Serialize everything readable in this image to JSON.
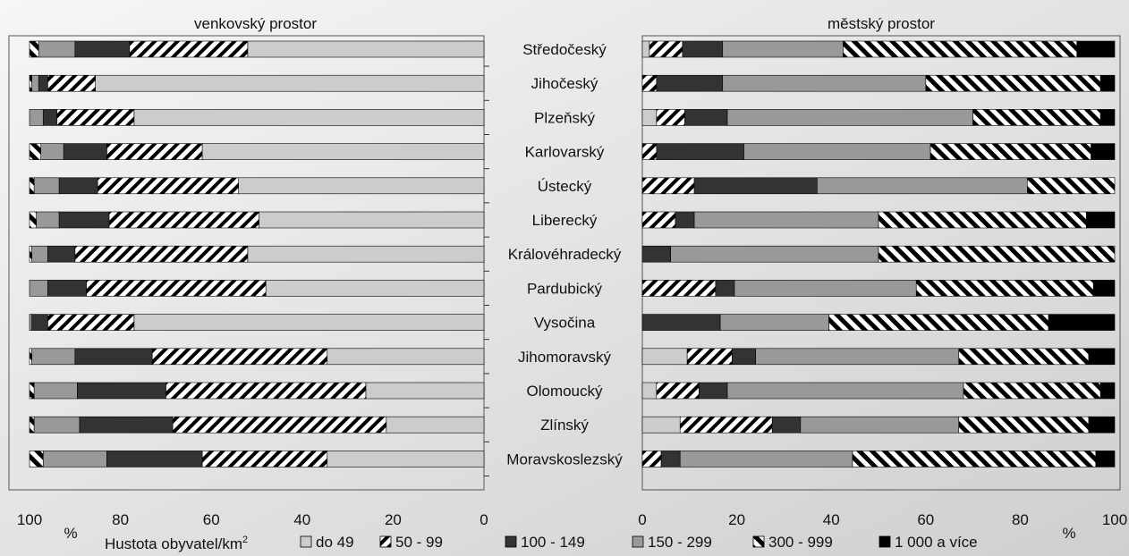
{
  "chart_data": [
    {
      "type": "bar",
      "subtype": "stacked-horizontal-100",
      "panel": "left",
      "title": "venkovský prostor",
      "x_axis": {
        "reversed": true,
        "ticks": [
          "100",
          "80",
          "60",
          "40",
          "20",
          "0"
        ],
        "unit_label": "%",
        "xlim": [
          0,
          100
        ]
      },
      "categories": [
        "Středočeský",
        "Jihočeský",
        "Plzeňský",
        "Karlovarský",
        "Ústecký",
        "Liberecký",
        "Královéhradecký",
        "Pardubický",
        "Vysočina",
        "Jihomoravský",
        "Olomoucký",
        "Zlínský",
        "Moravskoslezský"
      ],
      "series": [
        {
          "name": "do 49",
          "values": [
            52,
            85.5,
            77,
            62,
            54,
            49.5,
            52,
            48,
            77,
            34.5,
            26,
            21.5,
            34.5
          ]
        },
        {
          "name": "50 - 99",
          "values": [
            26,
            10.5,
            17,
            21,
            31,
            33,
            38,
            39.5,
            19,
            38.5,
            44,
            47,
            27.5
          ]
        },
        {
          "name": "100 - 149",
          "values": [
            12,
            2,
            3,
            9.5,
            8.5,
            11,
            6,
            8.5,
            3.5,
            17,
            19.5,
            20.5,
            21
          ]
        },
        {
          "name": "150 - 299",
          "values": [
            8,
            1.5,
            3,
            5,
            5.5,
            5,
            3.5,
            4,
            0.5,
            9.5,
            9.5,
            10,
            14
          ]
        },
        {
          "name": "300 - 999",
          "values": [
            2,
            0.5,
            0,
            2.5,
            1,
            1.5,
            0.5,
            0,
            0,
            0.5,
            1,
            1,
            3
          ]
        },
        {
          "name": "1 000 a více",
          "values": [
            0,
            0,
            0,
            0,
            0,
            0,
            0,
            0,
            0,
            0,
            0,
            0,
            0
          ]
        }
      ]
    },
    {
      "type": "bar",
      "subtype": "stacked-horizontal-100",
      "panel": "right",
      "title": "městský prostor",
      "x_axis": {
        "reversed": false,
        "ticks": [
          "0",
          "20",
          "40",
          "60",
          "80",
          "100"
        ],
        "unit_label": "%",
        "xlim": [
          0,
          100
        ]
      },
      "categories": [
        "Středočeský",
        "Jihočeský",
        "Plzeňský",
        "Karlovarský",
        "Ústecký",
        "Liberecký",
        "Královéhradecký",
        "Pardubický",
        "Vysočina",
        "Jihomoravský",
        "Olomoucký",
        "Zlínský",
        "Moravskoslezský"
      ],
      "series": [
        {
          "name": "do 49",
          "values": [
            1.5,
            0,
            3,
            0,
            0,
            0,
            0,
            0,
            0,
            9.5,
            3,
            8,
            0
          ]
        },
        {
          "name": "50 - 99",
          "values": [
            7,
            3,
            6,
            3,
            11,
            7,
            0,
            15.5,
            0,
            9.5,
            9,
            19.5,
            4
          ]
        },
        {
          "name": "100 - 149",
          "values": [
            8.5,
            14,
            9,
            18.5,
            26,
            4,
            6,
            4,
            16.5,
            5,
            6,
            6,
            4
          ]
        },
        {
          "name": "150 - 299",
          "values": [
            25.5,
            43,
            52,
            39.5,
            44.5,
            39,
            44,
            38.5,
            23,
            43,
            50,
            33.5,
            36.5
          ]
        },
        {
          "name": "300 - 999",
          "values": [
            49.5,
            37,
            27,
            34,
            18.5,
            44,
            50,
            37.5,
            46.5,
            27.5,
            29,
            27.5,
            51.5
          ]
        },
        {
          "name": "1 000 a více",
          "values": [
            8,
            3,
            3,
            5,
            0,
            6,
            0,
            4.5,
            14,
            5.5,
            3,
            5.5,
            4
          ]
        }
      ]
    }
  ],
  "legend": {
    "title_text": "Hustota obyvatel/km",
    "title_sup": "2",
    "items": [
      {
        "label": "do 49",
        "color": "#cccccc",
        "pattern": "solid"
      },
      {
        "label": "50 - 99",
        "color": "#000000",
        "pattern": "diag-thin"
      },
      {
        "label": "100 - 149",
        "color": "#333333",
        "pattern": "solid"
      },
      {
        "label": "150 - 299",
        "color": "#999999",
        "pattern": "solid"
      },
      {
        "label": "300 - 999",
        "color": "#000000",
        "pattern": "diag-wide"
      },
      {
        "label": "1 000 a více",
        "color": "#000000",
        "pattern": "solid"
      }
    ]
  }
}
